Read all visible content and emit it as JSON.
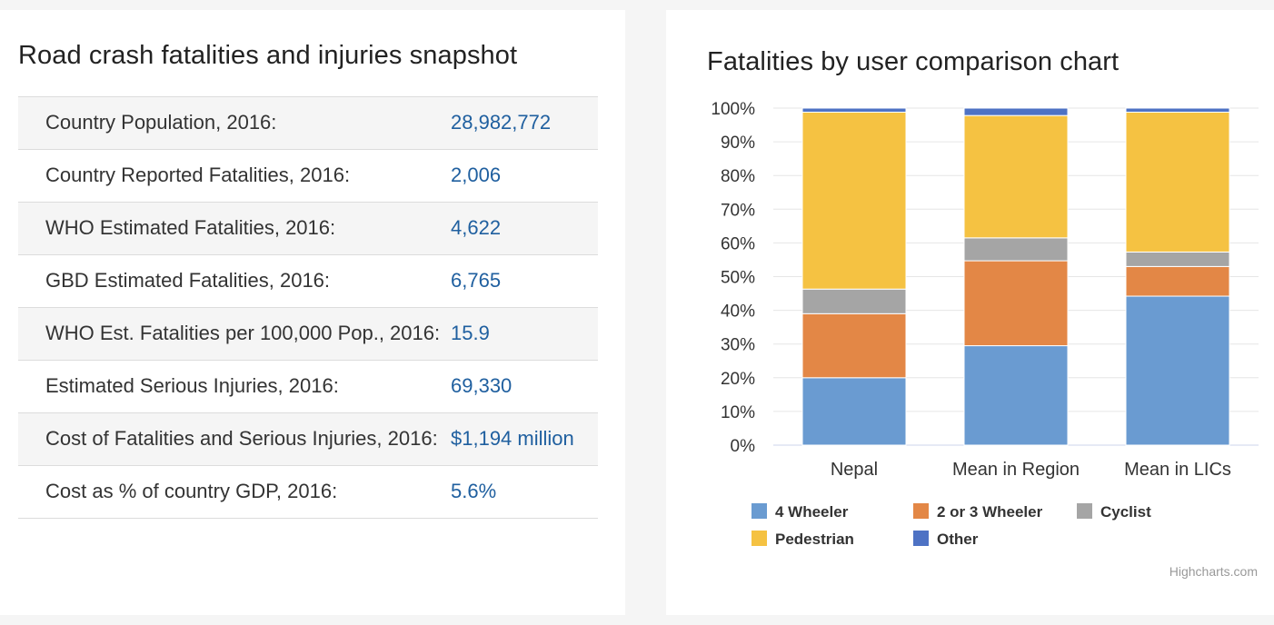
{
  "snapshot": {
    "title": "Road crash fatalities and injuries snapshot",
    "rows": [
      {
        "label": "Country Population, 2016:",
        "value": "28,982,772"
      },
      {
        "label": "Country Reported Fatalities, 2016:",
        "value": "2,006"
      },
      {
        "label": "WHO Estimated Fatalities, 2016:",
        "value": "4,622"
      },
      {
        "label": "GBD Estimated Fatalities, 2016:",
        "value": "6,765"
      },
      {
        "label": "WHO Est. Fatalities per 100,000 Pop., 2016:",
        "value": "15.9"
      },
      {
        "label": "Estimated Serious Injuries, 2016:",
        "value": "69,330"
      },
      {
        "label": "Cost of Fatalities and Serious Injuries, 2016:",
        "value": "$1,194 million"
      },
      {
        "label": "Cost as % of country GDP, 2016:",
        "value": "5.6%"
      }
    ]
  },
  "chart_data": {
    "type": "bar",
    "stacking": "percent",
    "title": "Fatalities by user comparison chart",
    "categories": [
      "Nepal",
      "Mean in Region",
      "Mean in LICs"
    ],
    "ylim": [
      0,
      100
    ],
    "yticks": [
      "0%",
      "10%",
      "20%",
      "30%",
      "40%",
      "50%",
      "60%",
      "70%",
      "80%",
      "90%",
      "100%"
    ],
    "grid": true,
    "legend_position": "bottom",
    "series": [
      {
        "name": "4 Wheeler",
        "color": "#6a9bd1",
        "values": [
          20,
          29.5,
          44.2
        ]
      },
      {
        "name": "2 or 3 Wheeler",
        "color": "#e38746",
        "values": [
          19,
          25.2,
          8.8
        ]
      },
      {
        "name": "Cyclist",
        "color": "#a5a5a5",
        "values": [
          7.3,
          6.8,
          4.3
        ]
      },
      {
        "name": "Pedestrian",
        "color": "#f5c242",
        "values": [
          52.5,
          36.3,
          41.5
        ]
      },
      {
        "name": "Other",
        "color": "#4e72c4",
        "values": [
          1.2,
          2.2,
          1.2
        ]
      }
    ],
    "credit": "Highcharts.com"
  }
}
